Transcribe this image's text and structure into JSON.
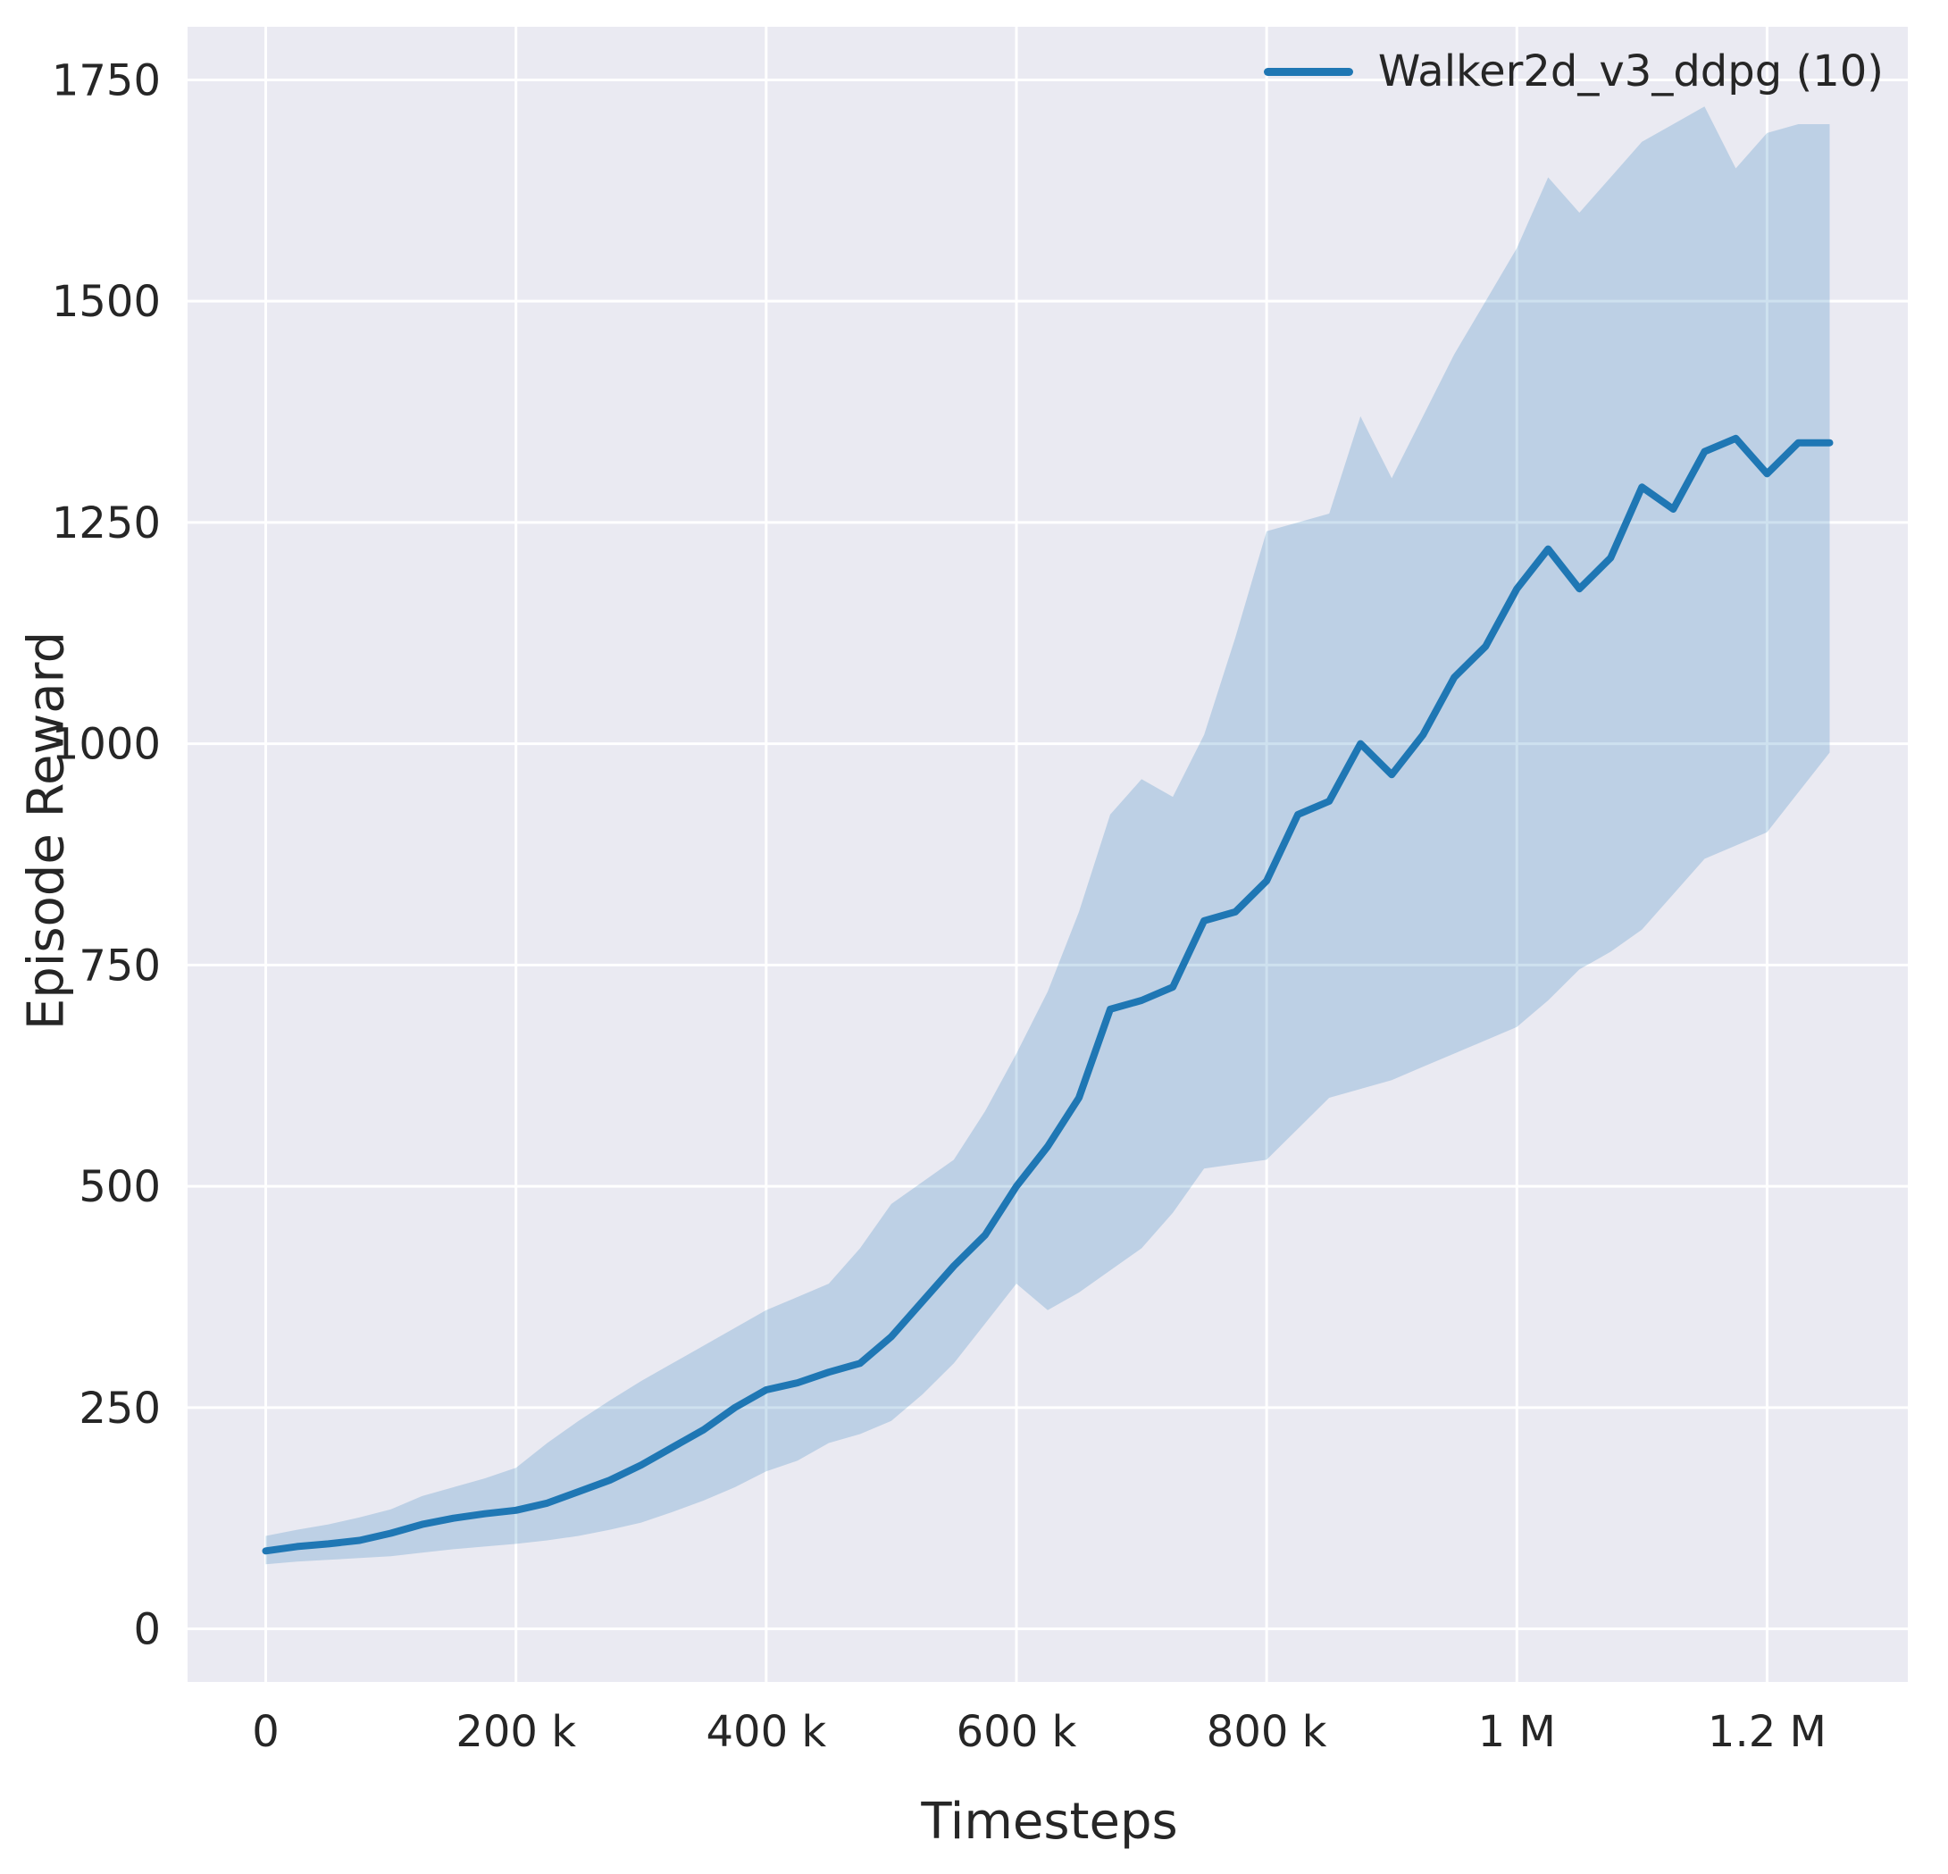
{
  "chart_data": {
    "type": "line",
    "title": "",
    "xlabel": "Timesteps",
    "ylabel": "Episode Reward",
    "xlim": [
      -62500,
      1312500
    ],
    "ylim": [
      -60,
      1810
    ],
    "grid": true,
    "legend_position": "upper right",
    "xticks": [
      0,
      200000,
      400000,
      600000,
      800000,
      1000000,
      1200000
    ],
    "xtick_labels": [
      "0",
      "200 k",
      "400 k",
      "600 k",
      "800 k",
      "1 M",
      "1.2 M"
    ],
    "yticks": [
      0,
      250,
      500,
      750,
      1000,
      1250,
      1500,
      1750
    ],
    "ytick_labels": [
      "0",
      "250",
      "500",
      "750",
      "1000",
      "1250",
      "1500",
      "1750"
    ],
    "legend": [
      {
        "label": "Walker2d_v3_ddpg (10)",
        "color": "#1f77b4"
      }
    ],
    "colors": {
      "accent": "#1f77b4",
      "band_fill": "#1f77b4",
      "band_opacity": 0.22,
      "plot_background": "#eaeaf2",
      "grid": "#ffffff",
      "text": "#262626"
    },
    "series": [
      {
        "name": "Walker2d_v3_ddpg (10)",
        "color": "#1f77b4",
        "x": [
          0,
          25000,
          50000,
          75000,
          100000,
          125000,
          150000,
          175000,
          200000,
          225000,
          250000,
          275000,
          300000,
          325000,
          350000,
          375000,
          400000,
          425000,
          450000,
          475000,
          500000,
          525000,
          550000,
          575000,
          600000,
          625000,
          650000,
          675000,
          700000,
          725000,
          750000,
          775000,
          800000,
          825000,
          850000,
          875000,
          900000,
          925000,
          950000,
          975000,
          1000000,
          1025000,
          1050000,
          1075000,
          1100000,
          1125000,
          1150000,
          1175000,
          1200000,
          1225000,
          1250000
        ],
        "mean": [
          88,
          93,
          96,
          100,
          108,
          118,
          125,
          130,
          134,
          142,
          155,
          168,
          185,
          205,
          225,
          250,
          270,
          278,
          290,
          300,
          330,
          370,
          410,
          445,
          500,
          545,
          600,
          700,
          710,
          725,
          800,
          810,
          845,
          920,
          935,
          1000,
          965,
          1010,
          1075,
          1110,
          1175,
          1220,
          1175,
          1210,
          1290,
          1265,
          1330,
          1345,
          1305,
          1340,
          1340
        ],
        "lower": [
          73,
          76,
          78,
          80,
          82,
          86,
          90,
          93,
          96,
          100,
          105,
          112,
          120,
          132,
          145,
          160,
          178,
          190,
          210,
          220,
          235,
          265,
          300,
          345,
          390,
          360,
          380,
          405,
          430,
          470,
          520,
          525,
          530,
          565,
          600,
          610,
          620,
          635,
          650,
          665,
          680,
          710,
          745,
          765,
          790,
          830,
          870,
          885,
          900,
          945,
          990
        ],
        "upper": [
          105,
          112,
          118,
          126,
          135,
          150,
          160,
          170,
          182,
          210,
          235,
          258,
          280,
          300,
          320,
          340,
          360,
          375,
          390,
          430,
          480,
          505,
          530,
          585,
          650,
          720,
          810,
          920,
          960,
          940,
          1010,
          1120,
          1240,
          1250,
          1260,
          1370,
          1300,
          1370,
          1440,
          1500,
          1560,
          1640,
          1600,
          1640,
          1680,
          1700,
          1720,
          1650,
          1690,
          1700,
          1700
        ]
      }
    ]
  }
}
